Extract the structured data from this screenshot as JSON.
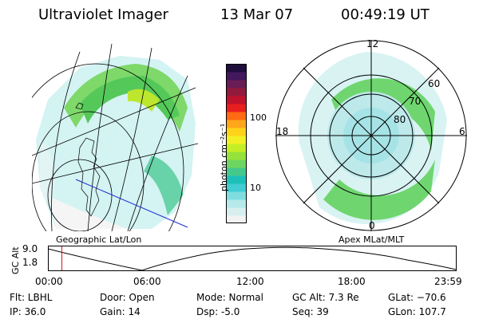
{
  "header": {
    "instrument": "Ultraviolet Imager",
    "date": "13 Mar 07",
    "time": "00:49:19 UT"
  },
  "left_panel": {
    "caption": "Geographic Lat/Lon"
  },
  "right_panel": {
    "caption": "Apex MLat/MLT",
    "mlt_labels": {
      "top": "12",
      "left": "18",
      "right": "6",
      "bottom": "0"
    },
    "mlat_labels": [
      "60",
      "70",
      "80"
    ]
  },
  "colorbar": {
    "label": "photon cm⁻²s⁻¹",
    "ticks": [
      "100",
      "10"
    ],
    "colors": [
      "#f2f2f2",
      "#d8efef",
      "#b6e9ea",
      "#7fdde0",
      "#41cdd3",
      "#1cc0b8",
      "#44c98a",
      "#6ed660",
      "#96e23b",
      "#c6ee24",
      "#f2f024",
      "#ffd21a",
      "#ffa61a",
      "#ff6a12",
      "#e81f1f",
      "#c0122c",
      "#931a3c",
      "#6a1d55",
      "#43185c",
      "#1e0d3d"
    ]
  },
  "altitude_plot": {
    "ylabel": "GC Alt",
    "ytick_top": "9.0",
    "ytick_bottom": "1.8",
    "xticks": [
      "00:00",
      "06:00",
      "12:00",
      "18:00",
      "23:59"
    ]
  },
  "info": {
    "flt": "Flt: LBHL",
    "ip": "IP: 36.0",
    "door": "Door: Open",
    "gain": "Gain: 14",
    "mode": "Mode: Normal",
    "dsp": "Dsp:    -5.0",
    "gcalt": "GC Alt: 7.3 Re",
    "seq": "Seq: 39",
    "glat": "GLat: −70.6",
    "glon": "GLon: 107.7"
  }
}
